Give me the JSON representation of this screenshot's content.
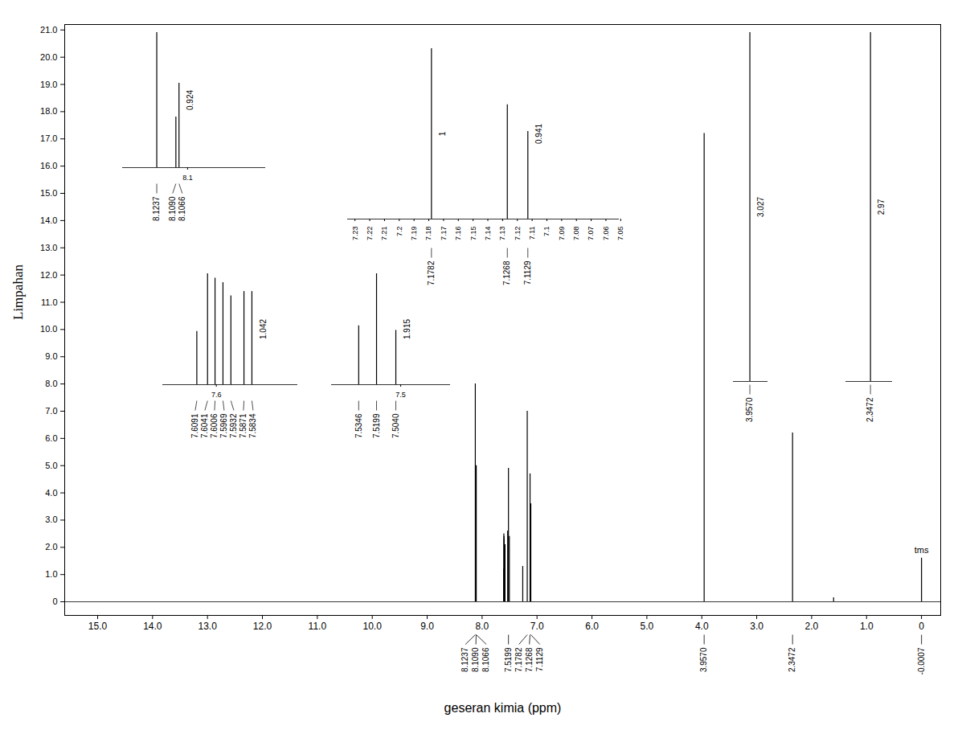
{
  "chart_data": {
    "type": "spectrum",
    "x_label": "geseran kimia (ppm)",
    "y_label": "Limpahan",
    "color": "#000000",
    "xlim": [
      15.6,
      -0.35
    ],
    "ylim": [
      -0.5,
      21.2
    ],
    "xticks": [
      {
        "value": 15,
        "label": "15.0"
      },
      {
        "value": 14,
        "label": "14.0"
      },
      {
        "value": 13,
        "label": "13.0"
      },
      {
        "value": 12,
        "label": "12.0"
      },
      {
        "value": 11,
        "label": "11.0"
      },
      {
        "value": 10,
        "label": "10.0"
      },
      {
        "value": 9,
        "label": "9.0"
      },
      {
        "value": 8,
        "label": "8.0"
      },
      {
        "value": 7,
        "label": "7.0"
      },
      {
        "value": 6,
        "label": "6.0"
      },
      {
        "value": 5,
        "label": "5.0"
      },
      {
        "value": 4,
        "label": "4.0"
      },
      {
        "value": 3,
        "label": "3.0"
      },
      {
        "value": 2,
        "label": "2.0"
      },
      {
        "value": 1,
        "label": "1.0"
      },
      0
    ],
    "yticks": [
      0,
      {
        "value": 1,
        "label": "1.0"
      },
      {
        "value": 2,
        "label": "2.0"
      },
      {
        "value": 3,
        "label": "3.0"
      },
      {
        "value": 4,
        "label": "4.0"
      },
      {
        "value": 5,
        "label": "5.0"
      },
      {
        "value": 6,
        "label": "6.0"
      },
      {
        "value": 7,
        "label": "7.0"
      },
      {
        "value": 8,
        "label": "8.0"
      },
      {
        "value": 9,
        "label": "9.0"
      },
      {
        "value": 10,
        "label": "10.0"
      },
      {
        "value": 11,
        "label": "11.0"
      },
      {
        "value": 12,
        "label": "12.0"
      },
      {
        "value": 13,
        "label": "13.0"
      },
      {
        "value": 14,
        "label": "14.0"
      },
      {
        "value": 15,
        "label": "15.0"
      },
      {
        "value": 16,
        "label": "16.0"
      },
      {
        "value": 17,
        "label": "17.0"
      },
      {
        "value": 18,
        "label": "18.0"
      },
      {
        "value": 19,
        "label": "19.0"
      },
      {
        "value": 20,
        "label": "20.0"
      },
      {
        "value": 21,
        "label": "21.0"
      }
    ],
    "peaks": [
      {
        "ppm": 8.1237,
        "height": 8.0
      },
      {
        "ppm": 8.109,
        "height": 3.0
      },
      {
        "ppm": 8.1066,
        "height": 5.0
      },
      {
        "ppm": 7.6091,
        "height": 1.2
      },
      {
        "ppm": 7.6041,
        "height": 2.5
      },
      {
        "ppm": 7.6006,
        "height": 2.4
      },
      {
        "ppm": 7.5969,
        "height": 2.3
      },
      {
        "ppm": 7.5932,
        "height": 2.0
      },
      {
        "ppm": 7.5871,
        "height": 2.1
      },
      {
        "ppm": 7.5834,
        "height": 2.1
      },
      {
        "ppm": 7.5346,
        "height": 2.6
      },
      {
        "ppm": 7.5199,
        "height": 4.9
      },
      {
        "ppm": 7.504,
        "height": 2.4
      },
      {
        "ppm": 7.26,
        "height": 1.3
      },
      {
        "ppm": 7.1782,
        "height": 7.0
      },
      {
        "ppm": 7.1268,
        "height": 4.7
      },
      {
        "ppm": 7.1129,
        "height": 3.6
      },
      {
        "ppm": 3.957,
        "height": 17.2
      },
      {
        "ppm": 2.3472,
        "height": 6.2
      },
      {
        "ppm": 1.6,
        "height": 0.15
      },
      {
        "ppm": -0.0007,
        "height": 1.6
      }
    ],
    "peak_labels": [
      {
        "value": 8.1237,
        "label": "8.1237"
      },
      {
        "value": 8.109,
        "label": "8.1090"
      },
      {
        "value": 8.1066,
        "label": "8.1066"
      },
      {
        "value": 7.5199,
        "label": "7.5199"
      },
      {
        "value": 7.1782,
        "label": "7.1782"
      },
      {
        "value": 7.1268,
        "label": "7.1268"
      },
      {
        "value": 7.1129,
        "label": "7.1129"
      },
      {
        "value": 3.957,
        "label": "3.9570"
      },
      {
        "value": 2.3472,
        "label": "2.3472"
      },
      {
        "value": -0.0007,
        "label": "-0.0007"
      }
    ],
    "annotations": [
      {
        "text": "tms",
        "ppm": -0.0007
      }
    ],
    "insets": [
      {
        "xlim": [
          8.15,
          8.04
        ],
        "ylim": [
          0,
          8.0
        ],
        "xticks": [
          8.1
        ],
        "peak_labels": [
          {
            "value": 8.1237,
            "label": "8.1237"
          },
          {
            "value": 8.109,
            "label": "8.1090"
          },
          {
            "value": 8.1066,
            "label": "8.1066"
          }
        ],
        "integrals": [
          {
            "value": 0.924,
            "ppm": 8.1066
          }
        ]
      },
      {
        "xlim": [
          7.625,
          7.562
        ],
        "ylim": [
          0,
          2.5
        ],
        "xticks": [
          7.6
        ],
        "peak_labels": [
          {
            "value": 7.6091,
            "label": "7.6091"
          },
          {
            "value": 7.6041,
            "label": "7.6041"
          },
          {
            "value": 7.6006,
            "label": "7.6006"
          },
          {
            "value": 7.5969,
            "label": "7.5969"
          },
          {
            "value": 7.5932,
            "label": "7.5932"
          },
          {
            "value": 7.5871,
            "label": "7.5871"
          },
          {
            "value": 7.5834,
            "label": "7.5834"
          }
        ],
        "integrals": [
          {
            "value": 1.042,
            "ppm": 7.5834
          }
        ]
      },
      {
        "xlim": [
          7.557,
          7.459
        ],
        "ylim": [
          0,
          4.9
        ],
        "xticks": [
          7.5
        ],
        "peak_labels": [
          {
            "value": 7.5346,
            "label": "7.5346"
          },
          {
            "value": 7.5199,
            "label": "7.5199"
          },
          {
            "value": 7.504,
            "label": "7.5040"
          }
        ],
        "integrals": [
          {
            "value": 1.915,
            "ppm": 7.504
          }
        ]
      },
      {
        "xlim": [
          7.235,
          7.051
        ],
        "ylim": [
          0,
          7.0
        ],
        "xticks": [
          7.23,
          7.22,
          7.21,
          7.2,
          7.19,
          7.18,
          7.17,
          7.16,
          7.15,
          7.14,
          7.13,
          7.12,
          7.11,
          7.1,
          7.09,
          7.08,
          7.07,
          7.06,
          7.05
        ],
        "peak_labels": [
          {
            "value": 7.1782,
            "label": "7.1782"
          },
          {
            "value": 7.1268,
            "label": "7.1268"
          },
          {
            "value": 7.1129,
            "label": "7.1129"
          }
        ],
        "integrals": [
          {
            "value": 1,
            "ppm": 7.1782
          },
          {
            "value": 0.941,
            "ppm": 7.1129
          }
        ]
      },
      {
        "xlim": [
          4.0,
          3.91
        ],
        "ylim": [
          0,
          17.2
        ],
        "xticks": [],
        "peak_labels": [
          {
            "value": 3.957,
            "label": "3.9570"
          }
        ],
        "integrals": [
          {
            "value": 3.027,
            "ppm": 3.957
          }
        ]
      },
      {
        "xlim": [
          2.4,
          2.3
        ],
        "ylim": [
          0,
          6.2
        ],
        "xticks": [],
        "peak_labels": [
          {
            "value": 2.3472,
            "label": "2.3472"
          }
        ],
        "integrals": [
          {
            "value": 2.97,
            "ppm": 2.3472
          }
        ]
      }
    ]
  }
}
